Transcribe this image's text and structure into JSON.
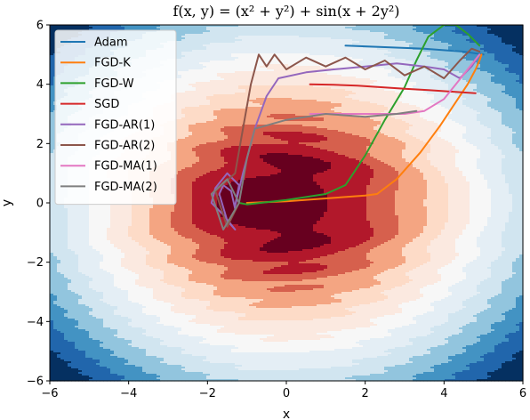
{
  "chart_data": {
    "type": "line",
    "title": "f(x, y) = (x² + y²) + sin(x + 2y²)",
    "xlabel": "x",
    "ylabel": "y",
    "xlim": [
      -6,
      6
    ],
    "ylim": [
      -6,
      6
    ],
    "xticks": [
      -6,
      -4,
      -2,
      0,
      2,
      4,
      6
    ],
    "yticks": [
      -6,
      -4,
      -2,
      0,
      2,
      4,
      6
    ],
    "tick_labels_x": [
      "−6",
      "−4",
      "−2",
      "0",
      "2",
      "4",
      "6"
    ],
    "tick_labels_y": [
      "−6",
      "−4",
      "−2",
      "0",
      "2",
      "4",
      "6"
    ],
    "legend_position": "top-left",
    "background": "filled contour plot of f(x, y), RdBu colormap",
    "contour_levels": [
      2,
      5,
      8,
      12,
      16,
      21,
      26,
      32,
      38,
      45,
      52,
      60,
      68
    ],
    "contour_colors": [
      "#67001f",
      "#b2182b",
      "#d6604d",
      "#f4a582",
      "#fddbc7",
      "#fbe9e0",
      "#f7f7f7",
      "#e4eef5",
      "#d1e5f0",
      "#92c5de",
      "#4393c3",
      "#2166ac",
      "#053061"
    ],
    "series": [
      {
        "name": "Adam",
        "color": "#1f77b4",
        "x": [
          1.5,
          2.5,
          3.5,
          4.5,
          5.0
        ],
        "y": [
          5.3,
          5.25,
          5.2,
          5.1,
          5.0
        ]
      },
      {
        "name": "FGD-K",
        "color": "#ff7f0e",
        "x": [
          -1.0,
          0.0,
          1.0,
          2.0,
          2.3,
          2.8,
          3.4,
          3.9,
          4.3,
          4.6,
          4.8,
          4.9,
          4.95
        ],
        "y": [
          0.0,
          0.05,
          0.15,
          0.25,
          0.3,
          0.8,
          1.7,
          2.6,
          3.4,
          4.0,
          4.5,
          4.8,
          5.0
        ]
      },
      {
        "name": "FGD-W",
        "color": "#2ca02c",
        "x": [
          -1.2,
          -1.0,
          0.0,
          1.0,
          1.5,
          2.0,
          2.5,
          3.0,
          3.3,
          3.6,
          4.0,
          4.3,
          4.6,
          4.9
        ],
        "y": [
          0.0,
          -0.05,
          0.1,
          0.3,
          0.6,
          1.6,
          2.8,
          3.9,
          4.8,
          5.6,
          6.0,
          6.0,
          5.7,
          5.3
        ]
      },
      {
        "name": "SGD",
        "color": "#d62728",
        "x": [
          0.6,
          1.2,
          1.8,
          2.4,
          3.0,
          3.6,
          4.2,
          4.8
        ],
        "y": [
          4.0,
          3.98,
          3.95,
          3.9,
          3.85,
          3.8,
          3.75,
          3.7
        ]
      },
      {
        "name": "FGD-AR(1)",
        "color": "#9467bd",
        "x": [
          -1.3,
          -1.4,
          -1.6,
          -1.7,
          -1.5,
          -1.3,
          -1.6,
          -1.9,
          -1.8,
          -1.5,
          -1.2,
          -1.3,
          -1.1,
          -0.8,
          -0.5,
          -0.2,
          0.5,
          1.2,
          2.0,
          2.8,
          3.5,
          4.0,
          4.4,
          4.7,
          4.9
        ],
        "y": [
          -0.2,
          0.4,
          0.6,
          0.3,
          -0.6,
          -0.9,
          -0.4,
          0.0,
          0.5,
          1.0,
          0.6,
          -0.1,
          1.0,
          2.5,
          3.6,
          4.2,
          4.4,
          4.5,
          4.6,
          4.7,
          4.6,
          4.5,
          4.2,
          4.6,
          5.0
        ]
      },
      {
        "name": "FGD-AR(2)",
        "color": "#8c564b",
        "x": [
          -1.2,
          -1.5,
          -1.8,
          -1.3,
          -1.1,
          -0.9,
          -0.7,
          -0.5,
          -0.3,
          0.0,
          0.5,
          1.0,
          1.5,
          2.0,
          2.5,
          3.0,
          3.5,
          4.0,
          4.4,
          4.7,
          4.9
        ],
        "y": [
          0.0,
          -0.8,
          0.4,
          1.0,
          2.5,
          4.0,
          5.0,
          4.6,
          5.0,
          4.5,
          4.9,
          4.6,
          4.9,
          4.5,
          4.8,
          4.3,
          4.6,
          4.2,
          4.8,
          5.2,
          5.1
        ]
      },
      {
        "name": "FGD-MA(1)",
        "color": "#e377c2",
        "x": [
          0.6,
          1.2,
          1.8,
          2.4,
          3.0,
          3.5,
          4.0,
          4.3,
          4.6,
          4.9
        ],
        "y": [
          3.0,
          3.0,
          3.0,
          3.0,
          3.0,
          3.1,
          3.5,
          4.0,
          4.5,
          5.0
        ]
      },
      {
        "name": "FGD-MA(2)",
        "color": "#7f7f7f",
        "x": [
          -1.2,
          -1.6,
          -1.9,
          -1.5,
          -1.2,
          -1.0,
          -0.8,
          0.0,
          1.0,
          2.0,
          2.8,
          3.3
        ],
        "y": [
          0.0,
          -0.9,
          0.3,
          0.8,
          0.0,
          1.5,
          2.5,
          2.8,
          3.0,
          2.9,
          3.0,
          3.1
        ]
      }
    ]
  }
}
